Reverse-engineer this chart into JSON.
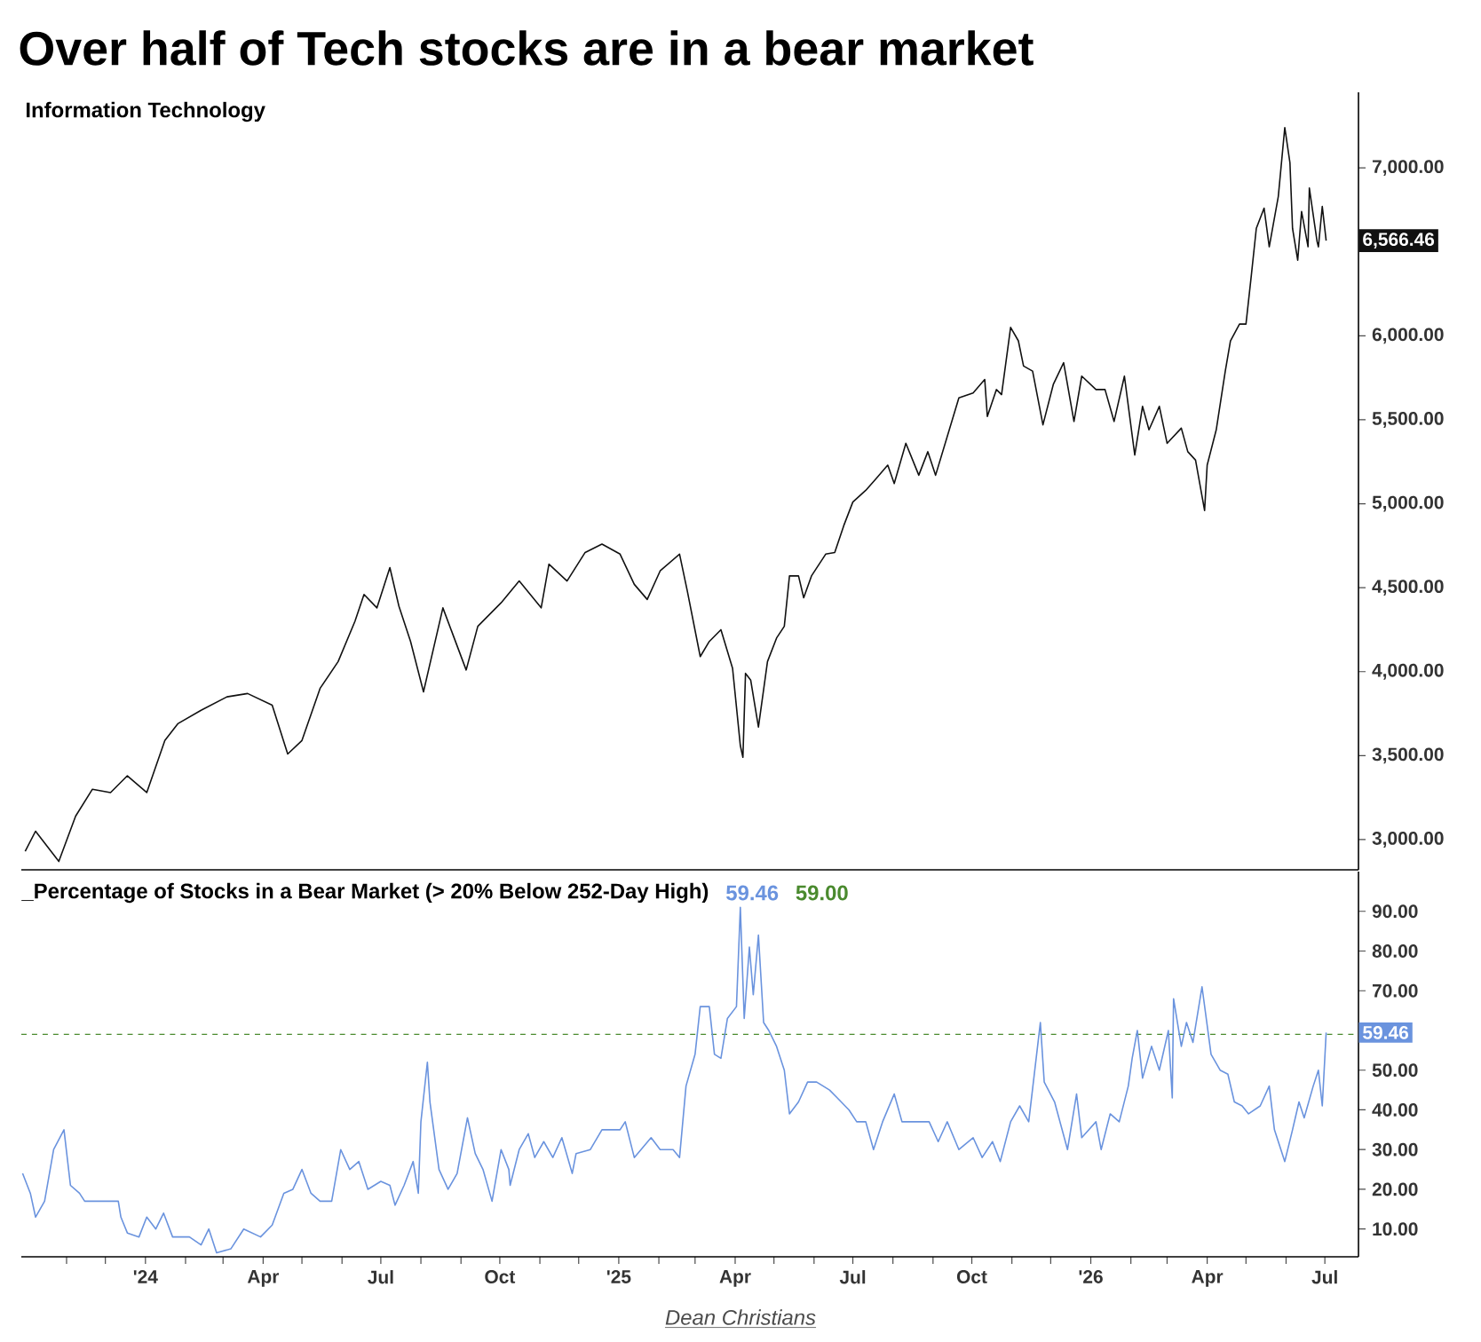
{
  "chart_data": [
    {
      "type": "line",
      "title": "Over half of Tech stocks are in a bear market",
      "subtitle": "Information Technology",
      "x": [
        "2023-09-30",
        "2023-10-08",
        "2023-10-26",
        "2023-11-08",
        "2023-11-21",
        "2023-12-05",
        "2023-12-18",
        "2024-01-02",
        "2024-01-16",
        "2024-01-26",
        "2024-02-13",
        "2024-03-04",
        "2024-03-20",
        "2024-04-08",
        "2024-04-20",
        "2024-05-01",
        "2024-05-15",
        "2024-05-29",
        "2024-06-11",
        "2024-06-18",
        "2024-06-28",
        "2024-07-08",
        "2024-07-15",
        "2024-07-24",
        "2024-08-03",
        "2024-08-18",
        "2024-09-05",
        "2024-09-14",
        "2024-10-02",
        "2024-10-16",
        "2024-11-02",
        "2024-11-08",
        "2024-11-22",
        "2024-12-06",
        "2024-12-19",
        "2025-01-02",
        "2025-01-13",
        "2025-01-23",
        "2025-02-02",
        "2025-02-17",
        "2025-02-23",
        "2025-03-05",
        "2025-03-12",
        "2025-03-21",
        "2025-03-30",
        "2025-04-05",
        "2025-04-07",
        "2025-04-09",
        "2025-04-13",
        "2025-04-19",
        "2025-04-26",
        "2025-05-03",
        "2025-05-09",
        "2025-05-13",
        "2025-05-20",
        "2025-05-24",
        "2025-05-30",
        "2025-06-10",
        "2025-06-17",
        "2025-06-24",
        "2025-07-01",
        "2025-07-11",
        "2025-07-19",
        "2025-07-28",
        "2025-08-02",
        "2025-08-11",
        "2025-08-21",
        "2025-08-28",
        "2025-09-03",
        "2025-09-12",
        "2025-09-21",
        "2025-10-02",
        "2025-10-11",
        "2025-10-13",
        "2025-10-20",
        "2025-10-24",
        "2025-10-31",
        "2025-11-06",
        "2025-11-10",
        "2025-11-17",
        "2025-11-25",
        "2025-12-03",
        "2025-12-11",
        "2025-12-19",
        "2025-12-25",
        "2026-01-05",
        "2026-01-12",
        "2026-01-19",
        "2026-01-27",
        "2026-02-04",
        "2026-02-10",
        "2026-02-15",
        "2026-02-23",
        "2026-03-01",
        "2026-03-12",
        "2026-03-17",
        "2026-03-23",
        "2026-03-30",
        "2026-04-01",
        "2026-04-08",
        "2026-04-15",
        "2026-04-19",
        "2026-04-26",
        "2026-05-01",
        "2026-05-05",
        "2026-05-09",
        "2026-05-15",
        "2026-05-19",
        "2026-05-26",
        "2026-05-31",
        "2026-06-04",
        "2026-06-06",
        "2026-06-10",
        "2026-06-13",
        "2026-06-18",
        "2026-06-19",
        "2026-06-25",
        "2026-06-26",
        "2026-06-29",
        "2026-07-02"
      ],
      "series": [
        {
          "color": "#111111",
          "values": [
            2930,
            3050,
            2870,
            3140,
            3300,
            3280,
            3380,
            3280,
            3590,
            3690,
            3770,
            3850,
            3870,
            3800,
            3510,
            3590,
            3900,
            4060,
            4300,
            4460,
            4380,
            4620,
            4390,
            4180,
            3880,
            4380,
            4010,
            4270,
            4410,
            4540,
            4380,
            4640,
            4540,
            4710,
            4760,
            4700,
            4520,
            4430,
            4600,
            4700,
            4480,
            4090,
            4180,
            4250,
            4020,
            3560,
            3490,
            3990,
            3950,
            3670,
            4060,
            4200,
            4270,
            4570,
            4570,
            4440,
            4570,
            4700,
            4710,
            4870,
            5010,
            5080,
            5150,
            5230,
            5120,
            5360,
            5170,
            5310,
            5170,
            5400,
            5630,
            5660,
            5740,
            5520,
            5680,
            5650,
            6050,
            5970,
            5820,
            5790,
            5470,
            5710,
            5840,
            5490,
            5760,
            5680,
            5680,
            5490,
            5760,
            5290,
            5580,
            5440,
            5580,
            5360,
            5450,
            5310,
            5260,
            4960,
            5230,
            5440,
            5790,
            5970,
            6070,
            6070,
            6350,
            6640,
            6760,
            6530,
            6830,
            7240,
            7030,
            6640,
            6450,
            6740,
            6530,
            6880,
            6560,
            6530,
            6770,
            6566.46
          ]
        }
      ],
      "xlim": [
        "2023-09-27",
        "2026-07-27"
      ],
      "ylim": [
        2820,
        7450
      ],
      "yticks": [
        {
          "value": 3000,
          "label": "3,000.00"
        },
        {
          "value": 3500,
          "label": "3,500.00"
        },
        {
          "value": 4000,
          "label": "4,000.00"
        },
        {
          "value": 4500,
          "label": "4,500.00"
        },
        {
          "value": 5000,
          "label": "5,000.00"
        },
        {
          "value": 5500,
          "label": "5,500.00"
        },
        {
          "value": 6000,
          "label": "6,000.00"
        },
        {
          "value": 7000,
          "label": "7,000.00"
        }
      ],
      "tick_labels": "y",
      "annotations": [
        {
          "text": "6,566.46",
          "x": "2026-07-02",
          "y": 6566.46
        }
      ]
    },
    {
      "type": "line",
      "title": "_Percentage of Stocks in a Bear Market (> 20% Below 252-Day High)",
      "x": [
        "2023-09-28",
        "2023-10-04",
        "2023-10-08",
        "2023-10-15",
        "2023-10-22",
        "2023-10-30",
        "2023-11-04",
        "2023-11-11",
        "2023-11-15",
        "2023-11-28",
        "2023-12-11",
        "2023-12-13",
        "2023-12-18",
        "2023-12-27",
        "2024-01-02",
        "2024-01-09",
        "2024-01-15",
        "2024-01-22",
        "2024-02-04",
        "2024-02-13",
        "2024-02-19",
        "2024-02-25",
        "2024-03-07",
        "2024-03-17",
        "2024-03-30",
        "2024-04-08",
        "2024-04-17",
        "2024-04-24",
        "2024-05-01",
        "2024-05-08",
        "2024-05-15",
        "2024-05-24",
        "2024-05-31",
        "2024-06-07",
        "2024-06-14",
        "2024-06-21",
        "2024-07-01",
        "2024-07-08",
        "2024-07-12",
        "2024-07-19",
        "2024-07-26",
        "2024-07-30",
        "2024-08-01",
        "2024-08-06",
        "2024-08-08",
        "2024-08-15",
        "2024-08-22",
        "2024-08-29",
        "2024-09-06",
        "2024-09-12",
        "2024-09-18",
        "2024-09-25",
        "2024-10-02",
        "2024-10-08",
        "2024-10-09",
        "2024-10-16",
        "2024-10-23",
        "2024-10-28",
        "2024-11-04",
        "2024-11-11",
        "2024-11-18",
        "2024-11-26",
        "2024-11-29",
        "2024-12-10",
        "2024-12-19",
        "2025-01-02",
        "2025-01-06",
        "2025-01-13",
        "2025-01-26",
        "2025-02-02",
        "2025-02-12",
        "2025-02-17",
        "2025-02-22",
        "2025-03-01",
        "2025-03-05",
        "2025-03-12",
        "2025-03-16",
        "2025-03-21",
        "2025-03-26",
        "2025-04-02",
        "2025-04-05",
        "2025-04-08",
        "2025-04-12",
        "2025-04-15",
        "2025-04-19",
        "2025-04-23",
        "2025-04-27",
        "2025-05-03",
        "2025-05-09",
        "2025-05-13",
        "2025-05-20",
        "2025-05-27",
        "2025-06-03",
        "2025-06-13",
        "2025-06-19",
        "2025-06-28",
        "2025-07-04",
        "2025-07-11",
        "2025-07-17",
        "2025-07-24",
        "2025-08-02",
        "2025-08-08",
        "2025-08-21",
        "2025-08-29",
        "2025-09-05",
        "2025-09-12",
        "2025-09-21",
        "2025-10-02",
        "2025-10-09",
        "2025-10-17",
        "2025-10-23",
        "2025-10-31",
        "2025-11-07",
        "2025-11-14",
        "2025-11-23",
        "2025-11-26",
        "2025-12-04",
        "2025-12-14",
        "2025-12-21",
        "2025-12-25",
        "2026-01-05",
        "2026-01-09",
        "2026-01-16",
        "2026-01-23",
        "2026-01-30",
        "2026-02-02",
        "2026-02-06",
        "2026-02-10",
        "2026-02-17",
        "2026-02-23",
        "2026-03-02",
        "2026-03-05",
        "2026-03-06",
        "2026-03-12",
        "2026-03-16",
        "2026-03-21",
        "2026-03-28",
        "2026-04-04",
        "2026-04-11",
        "2026-04-17",
        "2026-04-22",
        "2026-04-28",
        "2026-05-03",
        "2026-05-12",
        "2026-05-19",
        "2026-05-23",
        "2026-05-31",
        "2026-06-06",
        "2026-06-11",
        "2026-06-15",
        "2026-06-22",
        "2026-06-26",
        "2026-06-29",
        "2026-07-02"
      ],
      "series": [
        {
          "color": "#6a93de",
          "values": [
            24,
            19,
            13,
            17,
            30,
            35,
            21,
            19,
            17,
            17,
            17,
            13,
            9,
            8,
            13,
            10,
            14,
            8,
            8,
            6,
            10,
            4,
            5,
            10,
            8,
            11,
            19,
            20,
            25,
            19,
            17,
            17,
            30,
            25,
            27,
            20,
            22,
            21,
            16,
            21,
            27,
            19,
            37,
            52,
            42,
            25,
            20,
            24,
            38,
            29,
            25,
            17,
            30,
            25,
            21,
            30,
            34,
            28,
            32,
            28,
            33,
            24,
            29,
            30,
            35,
            35,
            37,
            28,
            33,
            30,
            30,
            28,
            46,
            54,
            66,
            66,
            54,
            53,
            63,
            66,
            91,
            63,
            81,
            69,
            84,
            62,
            60,
            56,
            50,
            39,
            42,
            47,
            47,
            45,
            43,
            40,
            37,
            37,
            30,
            37,
            44,
            37,
            37,
            37,
            32,
            37,
            30,
            33,
            28,
            32,
            27,
            37,
            41,
            37,
            62,
            47,
            42,
            30,
            44,
            33,
            37,
            30,
            39,
            37,
            46,
            53,
            60,
            48,
            56,
            50,
            60,
            43,
            68,
            56,
            62,
            57,
            71,
            54,
            50,
            49,
            42,
            41,
            39,
            41,
            46,
            35,
            27,
            35,
            42,
            38,
            46,
            50,
            41,
            59.46
          ]
        }
      ],
      "xlim": [
        "2023-09-27",
        "2026-07-27"
      ],
      "ylim": [
        3,
        100
      ],
      "xticks": [
        {
          "value": "2023-11",
          "label": null
        },
        {
          "value": "2023-12",
          "label": null
        },
        {
          "value": "2024-01",
          "label": "'24"
        },
        {
          "value": "2024-02",
          "label": null
        },
        {
          "value": "2024-03",
          "label": null
        },
        {
          "value": "2024-04",
          "label": "Apr"
        },
        {
          "value": "2024-05",
          "label": null
        },
        {
          "value": "2024-06",
          "label": null
        },
        {
          "value": "2024-07",
          "label": "Jul"
        },
        {
          "value": "2024-08",
          "label": null
        },
        {
          "value": "2024-09",
          "label": null
        },
        {
          "value": "2024-10",
          "label": "Oct"
        },
        {
          "value": "2024-11",
          "label": null
        },
        {
          "value": "2024-12",
          "label": null
        },
        {
          "value": "2025-01",
          "label": "'25"
        },
        {
          "value": "2025-02",
          "label": null
        },
        {
          "value": "2025-03",
          "label": null
        },
        {
          "value": "2025-04",
          "label": "Apr"
        },
        {
          "value": "2025-05",
          "label": null
        },
        {
          "value": "2025-06",
          "label": null
        },
        {
          "value": "2025-07",
          "label": "Jul"
        },
        {
          "value": "2025-08",
          "label": null
        },
        {
          "value": "2025-09",
          "label": null
        },
        {
          "value": "2025-10",
          "label": "Oct"
        },
        {
          "value": "2025-11",
          "label": null
        },
        {
          "value": "2025-12",
          "label": null
        },
        {
          "value": "2026-01",
          "label": "'26"
        },
        {
          "value": "2026-02",
          "label": null
        },
        {
          "value": "2026-03",
          "label": null
        },
        {
          "value": "2026-04",
          "label": "Apr"
        },
        {
          "value": "2026-05",
          "label": null
        },
        {
          "value": "2026-06",
          "label": null
        },
        {
          "value": "2026-07",
          "label": "Jul"
        }
      ],
      "yticks": [
        {
          "value": 10,
          "label": "10.00"
        },
        {
          "value": 20,
          "label": "20.00"
        },
        {
          "value": 30,
          "label": "30.00"
        },
        {
          "value": 40,
          "label": "40.00"
        },
        {
          "value": 50,
          "label": "50.00"
        },
        {
          "value": 70,
          "label": "70.00"
        },
        {
          "value": 80,
          "label": "80.00"
        },
        {
          "value": 90,
          "label": "90.00"
        }
      ],
      "ref_lines": [
        {
          "axis": "y",
          "value": 59,
          "label": "59.00",
          "color": "#4a8a2e",
          "line_style": "dashed"
        }
      ],
      "annotations": [
        "59.46",
        {
          "text": "59.46",
          "x": "2026-07-02",
          "y": 59.46
        },
        "Dean Christians"
      ]
    }
  ]
}
